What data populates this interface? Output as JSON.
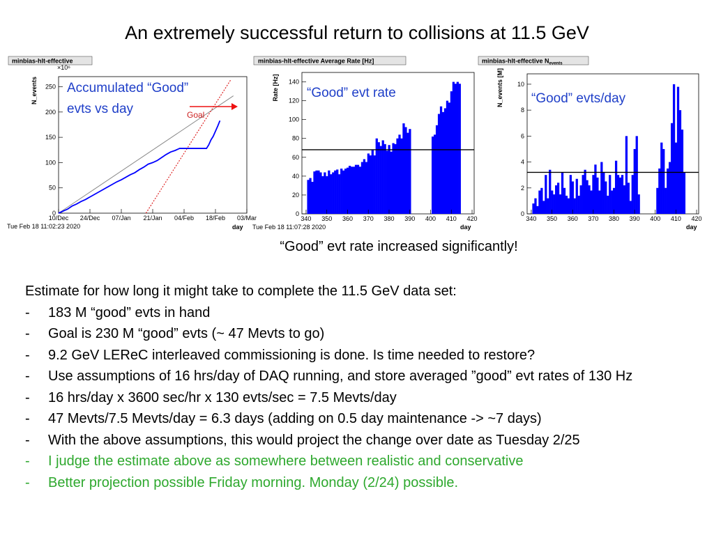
{
  "slide": {
    "title": "An extremely successful return to collisions at 11.5 GeV",
    "caption": "“Good” evt rate increased significantly!",
    "estimate_heading": "Estimate for how long it might take to complete the 11.5 GeV data set:",
    "bullets": [
      {
        "text": "183 M “good” evts in hand",
        "color": "#000000"
      },
      {
        "text": "Goal is 230 M “good” evts (~ 47 Mevts to go)",
        "color": "#000000"
      },
      {
        "text": "9.2 GeV LEReC interleaved commissioning is done. Is time needed to restore?",
        "color": "#000000"
      },
      {
        "text": "Use assumptions of 16 hrs/day of DAQ running, and store averaged ”good” evt rates of 130 Hz",
        "color": "#000000"
      },
      {
        "text": "16 hrs/day x 3600 sec/hr x 130 evts/sec = 7.5 Mevts/day",
        "color": "#000000"
      },
      {
        "text": "47 Mevts/7.5 Mevts/day = 6.3 days (adding on 0.5 day maintenance -> ~7 days)",
        "color": "#000000"
      },
      {
        "text": "With the above assumptions, this would project the change over date as Tuesday 2/25",
        "color": "#000000"
      },
      {
        "text": "I judge the estimate above as somewhere between realistic and conservative",
        "color": "#2ea82e"
      },
      {
        "text": "Better projection possible Friday morning. Monday (2/24) possible.",
        "color": "#2ea82e"
      }
    ],
    "bullet_marker": "-"
  },
  "chart_data": [
    {
      "type": "line",
      "title": "minbias-hlt-effective",
      "ylabel": "N_events",
      "y_multiplier": "×10⁶",
      "xlabel": "day",
      "timestamp": "Tue Feb 18 11:02:23 2020",
      "annotation": "Accumulated “Good” evts vs day",
      "goal_label": "Goal",
      "x_ticks": [
        "10/Dec",
        "24/Dec",
        "07/Jan",
        "21/Jan",
        "04/Feb",
        "18/Feb",
        "03/Mar"
      ],
      "y_ticks": [
        0,
        50,
        100,
        150,
        200,
        250
      ],
      "xlim": [
        0,
        84
      ],
      "ylim": [
        0,
        270
      ],
      "series": [
        {
          "name": "",
          "color": "#0000ff",
          "x": [
            0,
            2,
            4,
            6,
            8,
            10,
            12,
            14,
            16,
            18,
            20,
            22,
            24,
            26,
            28,
            30,
            32,
            34,
            36,
            38,
            40,
            42,
            44,
            46,
            48,
            50,
            52,
            54,
            56,
            58,
            60,
            62,
            64,
            66,
            67,
            68,
            69,
            70,
            71,
            72
          ],
          "y": [
            0,
            4,
            8,
            14,
            18,
            23,
            27,
            32,
            37,
            42,
            47,
            52,
            57,
            62,
            66,
            71,
            76,
            80,
            86,
            91,
            97,
            100,
            104,
            110,
            116,
            121,
            124,
            128,
            128,
            128,
            128,
            128,
            128,
            128,
            135,
            145,
            152,
            162,
            172,
            183
          ]
        }
      ],
      "reference_line": {
        "x": [
          0,
          78
        ],
        "y": [
          0,
          232
        ],
        "color": "#888888"
      },
      "goal_line": {
        "x": [
          39,
          77
        ],
        "y": [
          0,
          265
        ],
        "color": "#dd2222"
      }
    },
    {
      "type": "bar",
      "title": "minbias-hlt-effective Average Rate [Hz]",
      "ylabel": "Rate [Hz]",
      "xlabel": "day",
      "timestamp": "Tue Feb 18 11:07:28 2020",
      "annotation": "“Good” evt rate",
      "x_ticks": [
        340,
        350,
        360,
        370,
        380,
        390,
        400,
        410,
        420
      ],
      "y_ticks": [
        0,
        20,
        40,
        60,
        80,
        100,
        120,
        140
      ],
      "xlim": [
        338,
        421
      ],
      "ylim": [
        0,
        150
      ],
      "mean_line": 68,
      "bars": {
        "x": [
          341,
          342,
          343,
          344,
          345,
          346,
          347,
          348,
          349,
          350,
          351,
          352,
          353,
          354,
          355,
          356,
          357,
          358,
          359,
          360,
          361,
          362,
          363,
          364,
          365,
          366,
          367,
          368,
          369,
          370,
          371,
          372,
          373,
          374,
          375,
          376,
          377,
          378,
          379,
          380,
          381,
          382,
          383,
          384,
          385,
          386,
          387,
          388,
          389,
          390,
          401,
          402,
          403,
          404,
          405,
          406,
          407,
          408,
          409,
          410,
          411,
          412,
          413,
          414
        ],
        "y": [
          36,
          38,
          34,
          45,
          46,
          46,
          44,
          40,
          44,
          40,
          46,
          42,
          44,
          46,
          47,
          42,
          48,
          46,
          48,
          49,
          51,
          50,
          50,
          52,
          52,
          50,
          55,
          58,
          55,
          64,
          62,
          68,
          62,
          80,
          76,
          72,
          78,
          74,
          67,
          73,
          66,
          75,
          74,
          80,
          84,
          80,
          96,
          92,
          86,
          90,
          82,
          84,
          94,
          106,
          114,
          108,
          112,
          120,
          118,
          130,
          140,
          138,
          140,
          138
        ]
      }
    },
    {
      "type": "bar",
      "title": "minbias-hlt-effective N_events",
      "ylabel": "N_events [M]",
      "xlabel": "day",
      "timestamp": "Tue Feb 18 11:07:28 2020",
      "annotation": "“Good” evts/day",
      "x_ticks": [
        340,
        350,
        360,
        370,
        380,
        390,
        400,
        410,
        420
      ],
      "y_ticks": [
        0,
        2,
        4,
        6,
        8,
        10
      ],
      "xlim": [
        338,
        421
      ],
      "ylim": [
        0,
        10.8
      ],
      "mean_line": 3.2,
      "bars": {
        "x": [
          341,
          342,
          343,
          344,
          345,
          346,
          347,
          348,
          349,
          350,
          351,
          352,
          353,
          354,
          355,
          356,
          357,
          358,
          359,
          360,
          361,
          362,
          363,
          364,
          365,
          366,
          367,
          368,
          369,
          370,
          371,
          372,
          373,
          374,
          375,
          376,
          377,
          378,
          379,
          380,
          381,
          382,
          383,
          384,
          385,
          386,
          387,
          388,
          389,
          390,
          391,
          392,
          401,
          402,
          403,
          404,
          405,
          406,
          407,
          408,
          409,
          410,
          411,
          412,
          413,
          414
        ],
        "y": [
          0.8,
          1.2,
          0.6,
          1.8,
          2.0,
          1.0,
          3.0,
          1.2,
          3.4,
          1.8,
          1.5,
          2.2,
          2.4,
          1.5,
          3.2,
          2.0,
          1.4,
          1.2,
          3.0,
          2.5,
          1.2,
          2.7,
          1.4,
          2.2,
          3.0,
          3.4,
          2.6,
          2.2,
          1.8,
          3.0,
          3.8,
          2.8,
          1.8,
          4.0,
          3.2,
          2.5,
          1.4,
          3.0,
          1.8,
          2.0,
          4.1,
          3.0,
          2.8,
          3.0,
          2.2,
          6.0,
          2.4,
          1.0,
          3.0,
          5.0,
          6.0,
          1.5,
          2.0,
          3.5,
          5.5,
          5.0,
          2.0,
          3.5,
          4.0,
          7.0,
          10.0,
          5.5,
          9.8,
          8.0,
          6.5,
          3.2
        ]
      }
    }
  ]
}
